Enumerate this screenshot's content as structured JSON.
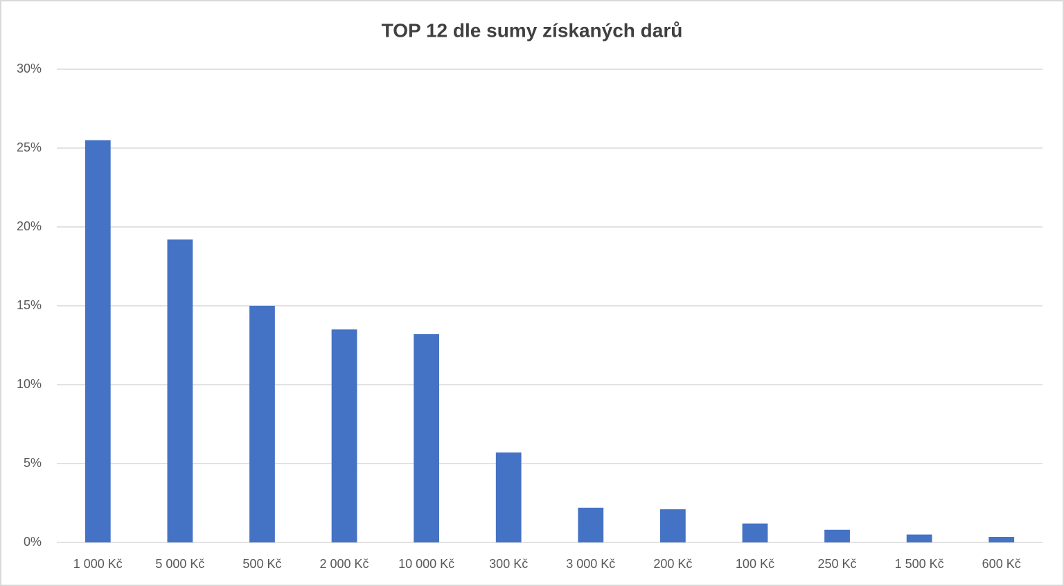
{
  "chart_data": {
    "type": "bar",
    "title": "TOP 12 dle sumy získaných darů",
    "categories": [
      "1 000 Kč",
      "5 000 Kč",
      "500 Kč",
      "2 000 Kč",
      "10 000 Kč",
      "300 Kč",
      "3 000 Kč",
      "200 Kč",
      "100 Kč",
      "250 Kč",
      "1 500 Kč",
      "600 Kč"
    ],
    "values": [
      25.5,
      19.2,
      15.0,
      13.5,
      13.2,
      5.7,
      2.2,
      2.1,
      1.2,
      0.8,
      0.5,
      0.35
    ],
    "color": "#4472c4",
    "ylim": [
      0,
      30
    ],
    "yticks": [
      {
        "value": 0,
        "label": "0%"
      },
      {
        "value": 5,
        "label": "5%"
      },
      {
        "value": 10,
        "label": "10%"
      },
      {
        "value": 15,
        "label": "15%"
      },
      {
        "value": 20,
        "label": "20%"
      },
      {
        "value": 25,
        "label": "25%"
      },
      {
        "value": 30,
        "label": "30%"
      }
    ],
    "grid": true
  }
}
